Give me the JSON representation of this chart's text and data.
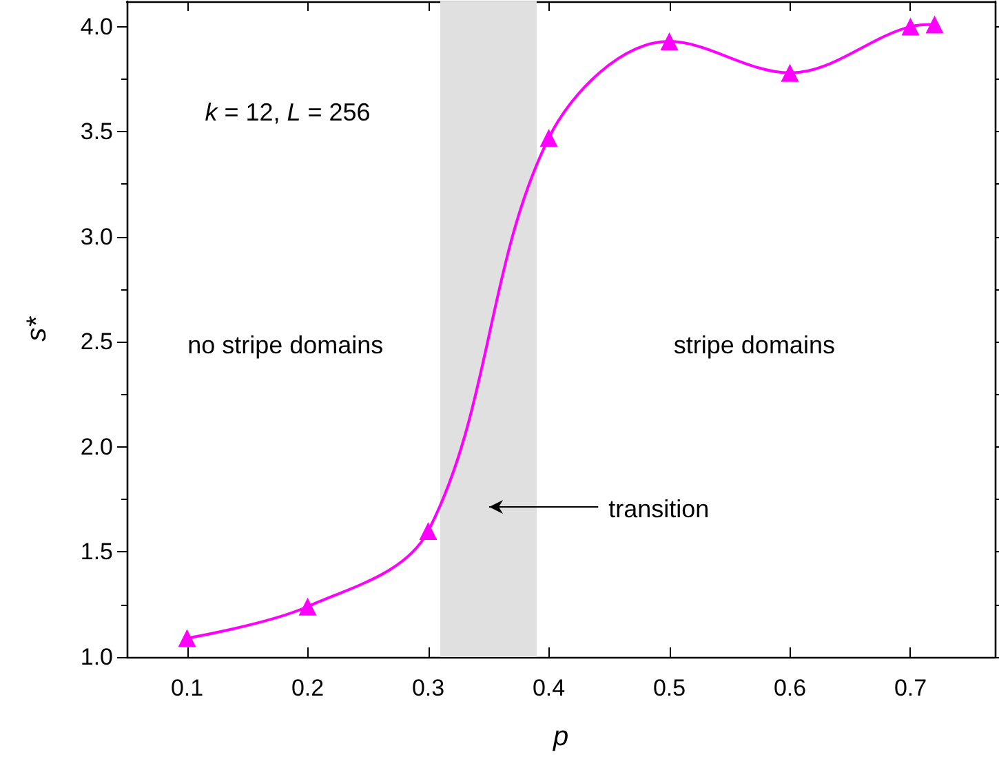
{
  "chart_data": {
    "type": "line",
    "xlabel": "p",
    "ylabel": "s*",
    "x": [
      0.1,
      0.2,
      0.3,
      0.4,
      0.5,
      0.6,
      0.7,
      0.72
    ],
    "series": [
      {
        "color": "#ff00ff",
        "values": [
          1.09,
          1.24,
          1.6,
          3.47,
          3.93,
          3.78,
          4.0,
          4.01
        ]
      }
    ],
    "marker": "triangle",
    "line_style": "solid",
    "grid": false,
    "xlim": [
      0.05,
      0.77
    ],
    "ylim": [
      1.0,
      4.12
    ],
    "xticks": [
      0.1,
      0.2,
      0.3,
      0.4,
      0.5,
      0.6,
      0.7
    ],
    "yticks": [
      {
        "value": 1.0,
        "label": "1.0"
      },
      {
        "value": 1.5,
        "label": "1.5"
      },
      {
        "value": 2.0,
        "label": "2.0"
      },
      {
        "value": 2.5,
        "label": "2.5"
      },
      {
        "value": 3.0,
        "label": "3.0"
      },
      {
        "value": 3.5,
        "label": "3.5"
      },
      {
        "value": 4.0,
        "label": "4.0"
      }
    ],
    "bands": [
      {
        "axis": "x",
        "from": 0.31,
        "to": 0.39,
        "color": "#e0e0e0"
      }
    ],
    "annotations": [
      "k = 12, L = 256",
      "no stripe domains",
      "stripe domains",
      "transition"
    ]
  }
}
